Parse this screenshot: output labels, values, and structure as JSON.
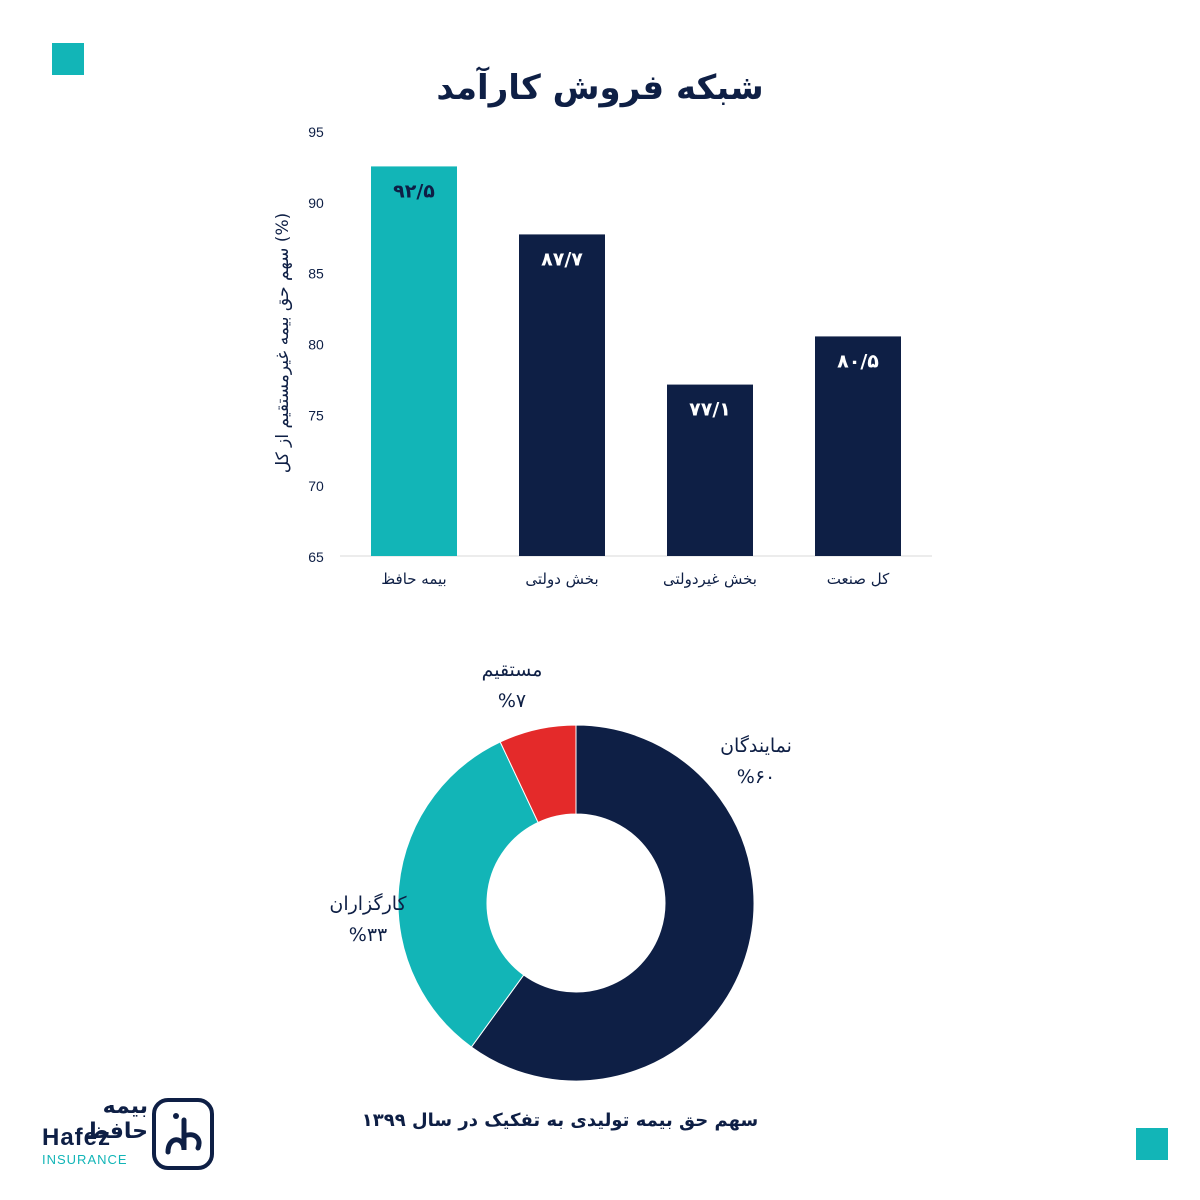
{
  "title": "شبکه فروش کارآمد",
  "colors": {
    "navy": "#0e1f45",
    "teal": "#12b5b7",
    "red": "#e42a2a",
    "grid": "#d8d8d8"
  },
  "chart_data": [
    {
      "type": "bar",
      "title": "شبکه فروش کارآمد",
      "ylabel": "سهم حق بیمه غیرمستقیم از کل (%)",
      "xlabel": "",
      "ylim": [
        65,
        95
      ],
      "yticks": [
        "95",
        "90",
        "85",
        "80",
        "75",
        "70",
        "65"
      ],
      "categories": [
        "بیمه حافظ",
        "بخش دولتی",
        "بخش غیردولتی",
        "کل صنعت"
      ],
      "values": [
        92.5,
        87.7,
        77.1,
        80.5
      ],
      "data_labels": [
        "۹۲/۵",
        "۸۷/۷",
        "۷۷/۱",
        "۸۰/۵"
      ],
      "colors": [
        "#12b5b7",
        "#0e1f45",
        "#0e1f45",
        "#0e1f45"
      ],
      "grid": false
    },
    {
      "type": "pie",
      "title": "سهم حق بیمه تولیدی به تفکیک در سال ۱۳۹۹",
      "donut": true,
      "slices": [
        {
          "label": "نمایندگان",
          "value_label": "%۶۰",
          "value": 60,
          "color": "#0e1f45"
        },
        {
          "label": "کارگزاران",
          "value_label": "%۳۳",
          "value": 33,
          "color": "#12b5b7"
        },
        {
          "label": "مستقیم",
          "value_label": "%۷",
          "value": 7,
          "color": "#e42a2a"
        }
      ]
    }
  ],
  "caption": "سهم حق بیمه تولیدی به تفکیک در سال ۱۳۹۹",
  "logo": {
    "fa": "بیمه حافظ",
    "en": "Hafez",
    "sub": "INSURANCE"
  }
}
